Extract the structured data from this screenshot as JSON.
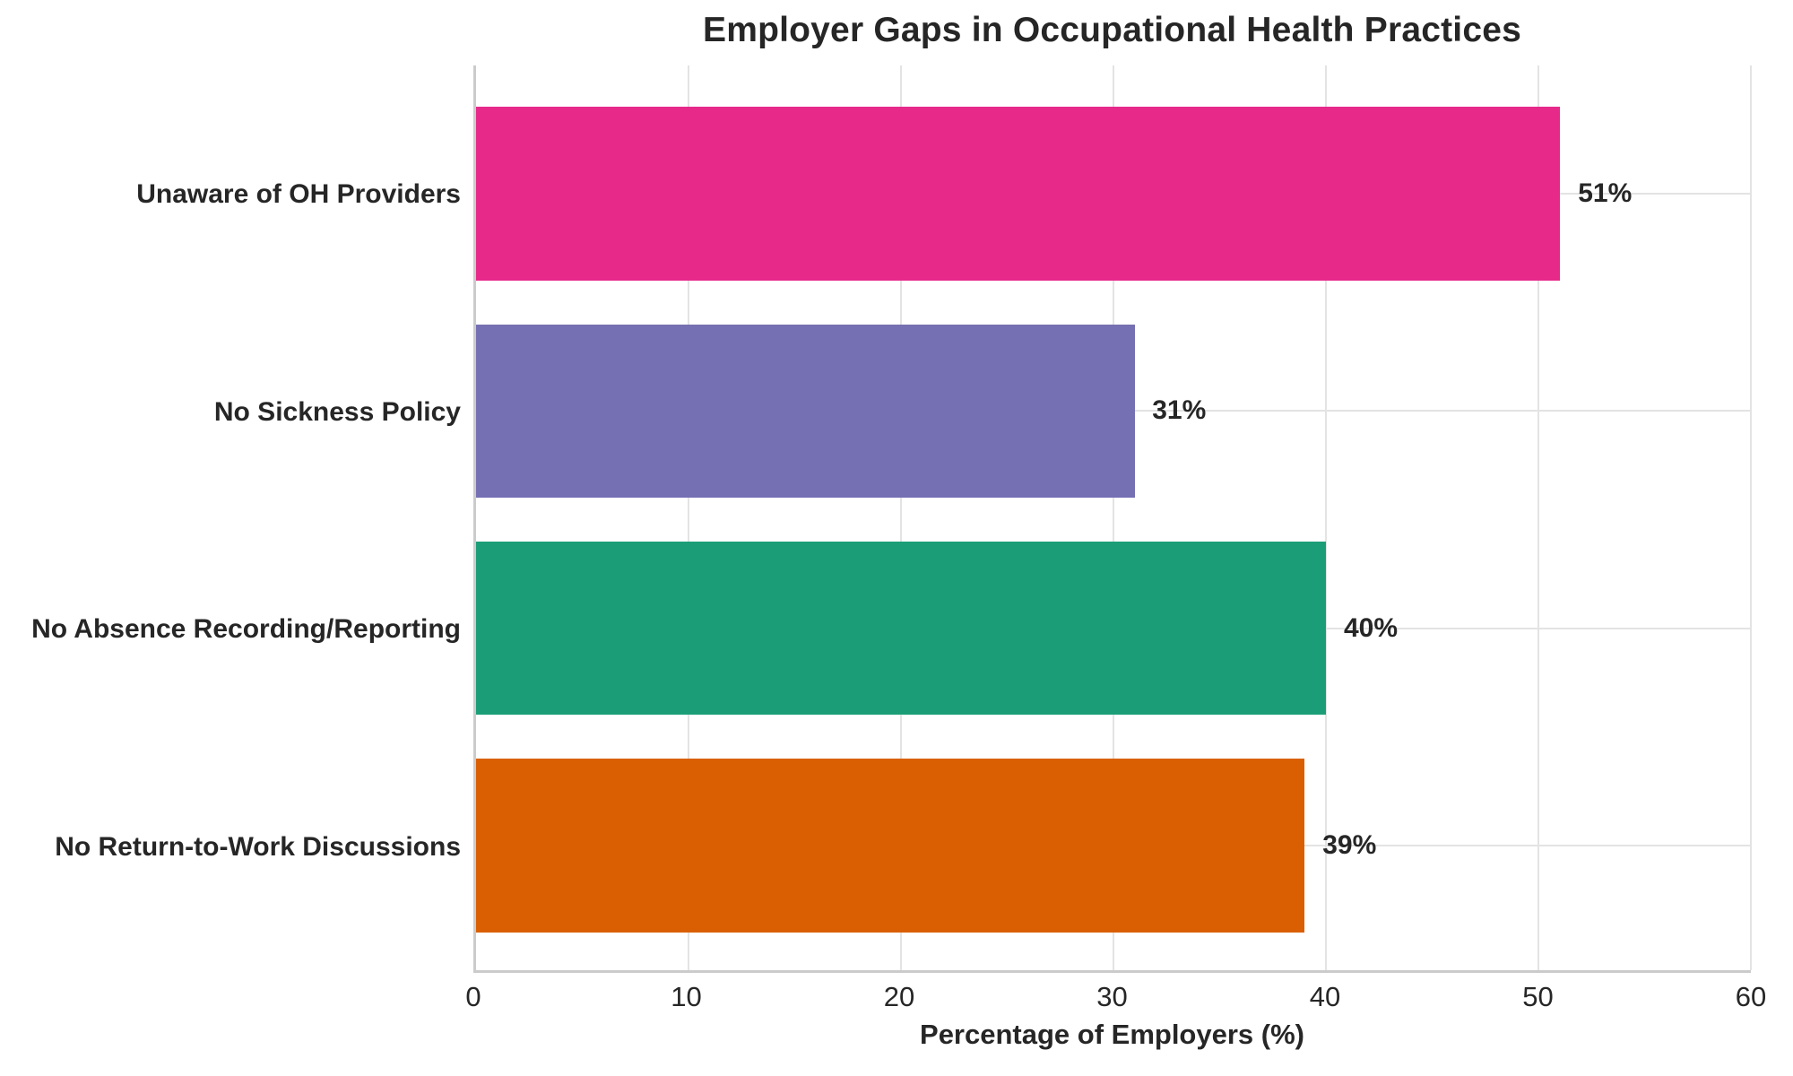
{
  "chart_data": {
    "type": "bar",
    "orientation": "horizontal",
    "title": "Employer Gaps in Occupational Health Practices",
    "xlabel": "Percentage of Employers (%)",
    "ylabel": "",
    "categories": [
      "Unaware of OH Providers",
      "No Sickness Policy",
      "No Absence Recording/Reporting",
      "No Return-to-Work Discussions"
    ],
    "values": [
      51,
      31,
      40,
      39
    ],
    "value_labels": [
      "51%",
      "31%",
      "40%",
      "39%"
    ],
    "bar_colors": [
      "#e7298a",
      "#7570b3",
      "#1b9e77",
      "#d95f02"
    ],
    "xlim": [
      0,
      60
    ],
    "xticks": [
      "0",
      "10",
      "20",
      "30",
      "40",
      "50",
      "60"
    ],
    "grid": "on",
    "legend": "none",
    "background_color": "#ffffff",
    "text_color": "#262626",
    "grid_color": "#e3e3e3",
    "spine_color": "#cbcbcb"
  }
}
